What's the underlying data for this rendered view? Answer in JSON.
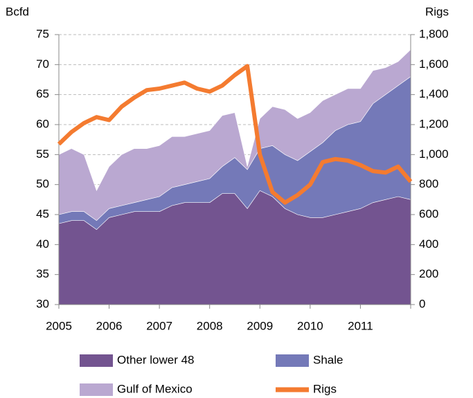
{
  "chart_data": {
    "type": "stacked-area-line",
    "y_label": "Bcfd",
    "y2_label": "Rigs",
    "x": [
      2005,
      2005.25,
      2005.5,
      2005.75,
      2006,
      2006.25,
      2006.5,
      2006.75,
      2007,
      2007.25,
      2007.5,
      2007.75,
      2008,
      2008.25,
      2008.5,
      2008.75,
      2009,
      2009.25,
      2009.5,
      2009.75,
      2010,
      2010.25,
      2010.5,
      2010.75,
      2011,
      2011.25,
      2011.5,
      2011.75,
      2012
    ],
    "xlim": [
      2005,
      2012
    ],
    "xticks": [
      2005,
      2006,
      2007,
      2008,
      2009,
      2010,
      2011
    ],
    "ylim": [
      30,
      75
    ],
    "yticks": [
      30,
      35,
      40,
      45,
      50,
      55,
      60,
      65,
      70,
      75
    ],
    "y2lim": [
      0,
      1800
    ],
    "y2ticks": [
      0,
      200,
      400,
      600,
      800,
      {
        "value": 1000,
        "label": "1,000"
      },
      {
        "value": 1200,
        "label": "1,200"
      },
      {
        "value": 1400,
        "label": "1,400"
      },
      {
        "value": 1600,
        "label": "1,600"
      },
      {
        "value": 1800,
        "label": "1,800"
      }
    ],
    "grid": true,
    "series": [
      {
        "name": "Other lower 48",
        "color": "#735490",
        "kind": "area",
        "values": [
          43.5,
          44,
          44,
          42.5,
          44.5,
          45,
          45.5,
          45.5,
          45.5,
          46.5,
          47,
          47,
          47,
          48.5,
          48.5,
          46,
          49,
          48,
          46,
          45,
          44.5,
          44.5,
          45,
          45.5,
          46,
          47,
          47.5,
          48,
          47.5
        ]
      },
      {
        "name": "Shale",
        "color": "#7479b8",
        "kind": "area",
        "values": [
          1.5,
          1.5,
          1.5,
          1.5,
          1.5,
          1.5,
          1.5,
          2,
          2.5,
          3,
          3,
          3.5,
          4,
          4.5,
          6,
          6.5,
          7,
          8.5,
          9,
          9,
          11,
          12.5,
          14,
          14.5,
          14.5,
          16.5,
          17.5,
          18.5,
          20.5
        ]
      },
      {
        "name": "Gulf of Mexico",
        "color": "#baa8d1",
        "kind": "area",
        "values": [
          10,
          10.5,
          9.5,
          5,
          7,
          8.5,
          9,
          8.5,
          8.5,
          8.5,
          8,
          8,
          8,
          8.5,
          7.5,
          0.5,
          5,
          6.5,
          7.5,
          7,
          6.5,
          7,
          6,
          6,
          5.5,
          5.5,
          4.5,
          4,
          4.5
        ]
      },
      {
        "name": "Rigs",
        "color": "#f47b30",
        "kind": "line",
        "axis": "y2",
        "values": [
          1070,
          1150,
          1210,
          1250,
          1230,
          1320,
          1380,
          1430,
          1440,
          1460,
          1480,
          1440,
          1420,
          1460,
          1530,
          1590,
          1000,
          750,
          680,
          730,
          800,
          950,
          970,
          960,
          930,
          890,
          880,
          920,
          820
        ]
      }
    ]
  }
}
